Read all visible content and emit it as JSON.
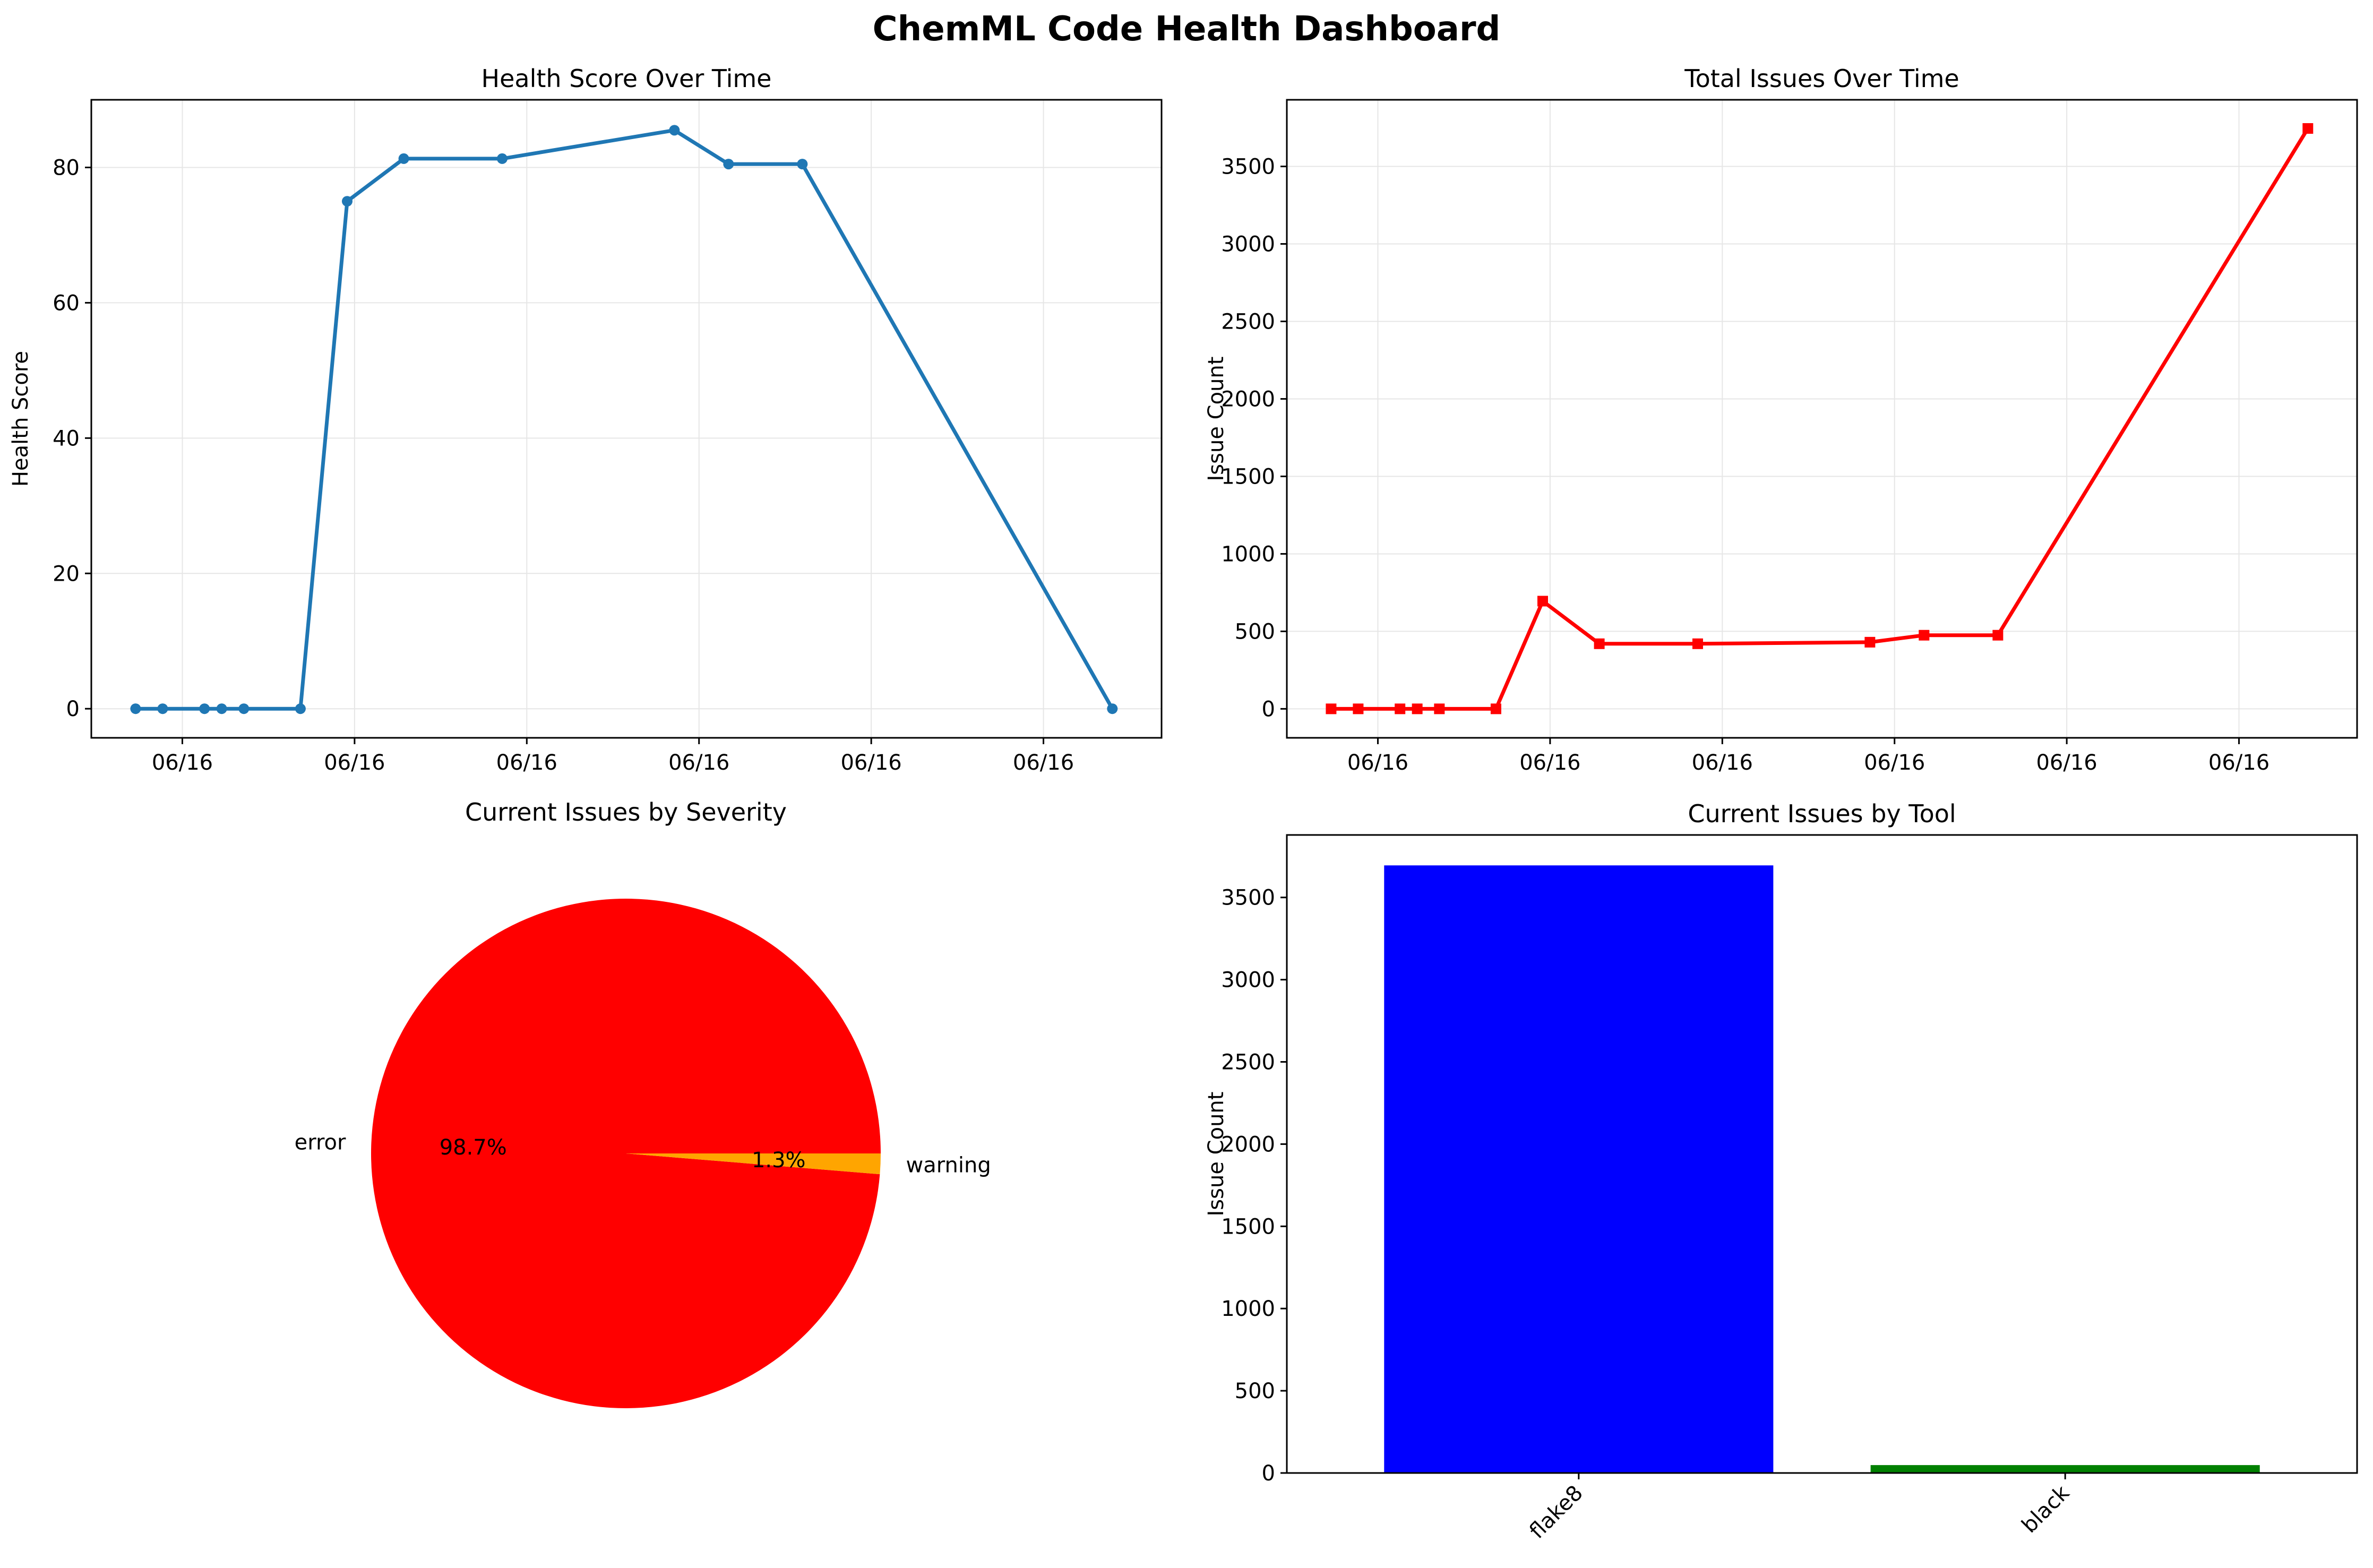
{
  "suptitle": "ChemML Code Health Dashboard",
  "colors": {
    "health_line": "#1f77b4",
    "issues_line": "#ff0000",
    "error_slice": "#ff0000",
    "warning_slice": "#ffa500",
    "flake8_bar": "#0000ff",
    "black_bar": "#008000",
    "grid": "#e6e6e6"
  },
  "chart_data": [
    {
      "type": "line",
      "title": "Health Score Over Time",
      "xlabel": "",
      "ylabel": "Health Score",
      "x_tick_labels": [
        "06/16",
        "06/16",
        "06/16",
        "06/16",
        "06/16",
        "06/16"
      ],
      "x_ticks": [
        0.0,
        0.7,
        1.4,
        2.1,
        2.8,
        3.5
      ],
      "xlim": [
        -0.37,
        3.98
      ],
      "ylim": [
        -4.3,
        90
      ],
      "y_ticks": [
        0,
        20,
        40,
        60,
        80
      ],
      "grid": true,
      "series": [
        {
          "x": [
            -0.19,
            -0.08,
            0.09,
            0.16,
            0.25,
            0.48,
            0.67,
            0.9,
            1.3,
            2.0,
            2.22,
            2.52,
            3.78
          ],
          "values": [
            0,
            0,
            0,
            0,
            0,
            0,
            75,
            81.3,
            81.3,
            85.5,
            80.5,
            80.5,
            0
          ]
        }
      ]
    },
    {
      "type": "line",
      "title": "Total Issues Over Time",
      "xlabel": "",
      "ylabel": "Issue Count",
      "x_tick_labels": [
        "06/16",
        "06/16",
        "06/16",
        "06/16",
        "06/16",
        "06/16"
      ],
      "x_ticks": [
        0.0,
        0.7,
        1.4,
        2.1,
        2.8,
        3.5
      ],
      "xlim": [
        -0.37,
        3.98
      ],
      "ylim": [
        -187,
        3930
      ],
      "y_ticks": [
        0,
        500,
        1000,
        1500,
        2000,
        2500,
        3000,
        3500
      ],
      "grid": true,
      "series": [
        {
          "x": [
            -0.19,
            -0.08,
            0.09,
            0.16,
            0.25,
            0.48,
            0.67,
            0.9,
            1.3,
            2.0,
            2.22,
            2.52,
            3.78
          ],
          "values": [
            0,
            0,
            0,
            0,
            0,
            0,
            695,
            420,
            420,
            430,
            475,
            475,
            3745
          ]
        }
      ]
    },
    {
      "type": "pie",
      "title": "Current Issues by Severity",
      "labels": [
        "error",
        "warning"
      ],
      "values": [
        98.7,
        1.3
      ],
      "autopct": [
        "98.7%",
        "1.3%"
      ]
    },
    {
      "type": "bar",
      "title": "Current Issues by Tool",
      "xlabel": "",
      "ylabel": "Issue Count",
      "categories": [
        "flake8",
        "black"
      ],
      "values": [
        3695,
        48
      ],
      "ylim": [
        0,
        3880
      ],
      "y_ticks": [
        0,
        500,
        1000,
        1500,
        2000,
        2500,
        3000,
        3500
      ]
    }
  ]
}
